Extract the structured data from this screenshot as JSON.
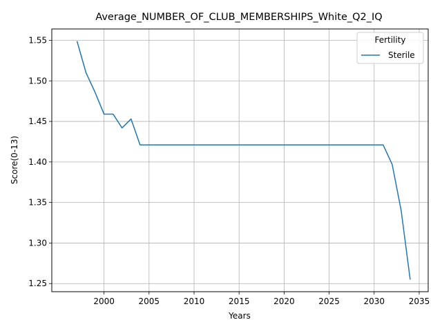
{
  "chart_data": {
    "type": "line",
    "title": "Average_NUMBER_OF_CLUB_MEMBERSHIPS_White_Q2_IQ",
    "xlabel": "Years",
    "ylabel": "Score(0-13)",
    "xlim": [
      1994.2,
      2036.0
    ],
    "ylim": [
      1.24,
      1.564
    ],
    "xticks": [
      2000,
      2005,
      2010,
      2015,
      2020,
      2025,
      2030,
      2035
    ],
    "yticks": [
      1.25,
      1.3,
      1.35,
      1.4,
      1.45,
      1.5,
      1.55
    ],
    "ytick_labels": [
      "1.25",
      "1.30",
      "1.35",
      "1.40",
      "1.45",
      "1.50",
      "1.55"
    ],
    "grid": true,
    "legend": {
      "title": "Fertility",
      "position": "top-right"
    },
    "series": [
      {
        "name": "Sterile",
        "color": "#1f77b4",
        "x": [
          1997,
          1998,
          1999,
          2000,
          2001,
          2002,
          2003,
          2004,
          2005,
          2006,
          2007,
          2008,
          2009,
          2010,
          2011,
          2012,
          2013,
          2014,
          2015,
          2016,
          2017,
          2018,
          2019,
          2020,
          2021,
          2022,
          2023,
          2024,
          2025,
          2026,
          2027,
          2028,
          2029,
          2030,
          2031,
          2032,
          2033,
          2034
        ],
        "y": [
          1.549,
          1.51,
          1.486,
          1.459,
          1.459,
          1.442,
          1.453,
          1.421,
          1.421,
          1.421,
          1.421,
          1.421,
          1.421,
          1.421,
          1.421,
          1.421,
          1.421,
          1.421,
          1.421,
          1.421,
          1.421,
          1.421,
          1.421,
          1.421,
          1.421,
          1.421,
          1.421,
          1.421,
          1.421,
          1.421,
          1.421,
          1.421,
          1.421,
          1.421,
          1.421,
          1.397,
          1.34,
          1.255
        ]
      }
    ]
  }
}
